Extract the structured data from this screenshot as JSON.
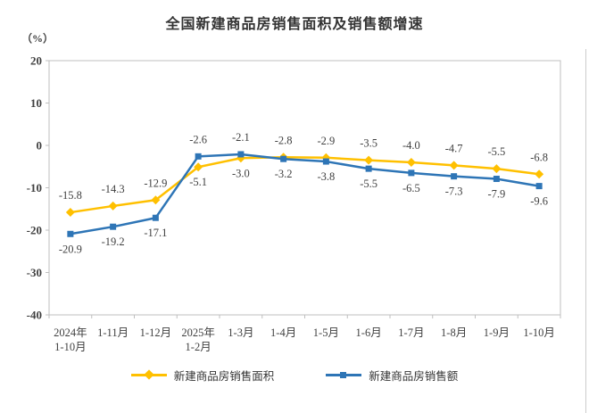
{
  "title": "全国新建商品房销售面积及销售额增速",
  "unit_label": "（%）",
  "chart_data": {
    "type": "line",
    "categories": [
      "2024年\n1-10月",
      "1-11月",
      "1-12月",
      "2025年\n1-2月",
      "1-3月",
      "1-4月",
      "1-5月",
      "1-6月",
      "1-7月",
      "1-8月",
      "1-9月",
      "1-10月"
    ],
    "series": [
      {
        "name": "新建商品房销售面积",
        "color": "#FFC000",
        "marker": "diamond",
        "values": [
          -15.8,
          -14.3,
          -12.9,
          -5.1,
          -3.0,
          -2.8,
          -2.9,
          -3.5,
          -4.0,
          -4.7,
          -5.5,
          -6.8
        ],
        "label_side": [
          "above",
          "above",
          "above",
          "below",
          "below",
          "above",
          "above",
          "above",
          "above",
          "above",
          "above",
          "above"
        ]
      },
      {
        "name": "新建商品房销售额",
        "color": "#2E75B6",
        "marker": "square",
        "values": [
          -20.9,
          -19.2,
          -17.1,
          -2.6,
          -2.1,
          -3.2,
          -3.8,
          -5.5,
          -6.5,
          -7.3,
          -7.9,
          -9.6
        ],
        "label_side": [
          "below",
          "below",
          "below",
          "above",
          "above",
          "below",
          "below",
          "below",
          "below",
          "below",
          "below",
          "below"
        ]
      }
    ],
    "title": "全国新建商品房销售面积及销售额增速",
    "xlabel": "",
    "ylabel": "（%）",
    "ylim": [
      -40,
      20
    ],
    "yticks": [
      20,
      10,
      0,
      -10,
      -20,
      -30,
      -40
    ],
    "grid": false,
    "legend_position": "bottom",
    "axis_color": "#bfbfbf",
    "text_color": "#404040",
    "label_decimals": 1
  }
}
